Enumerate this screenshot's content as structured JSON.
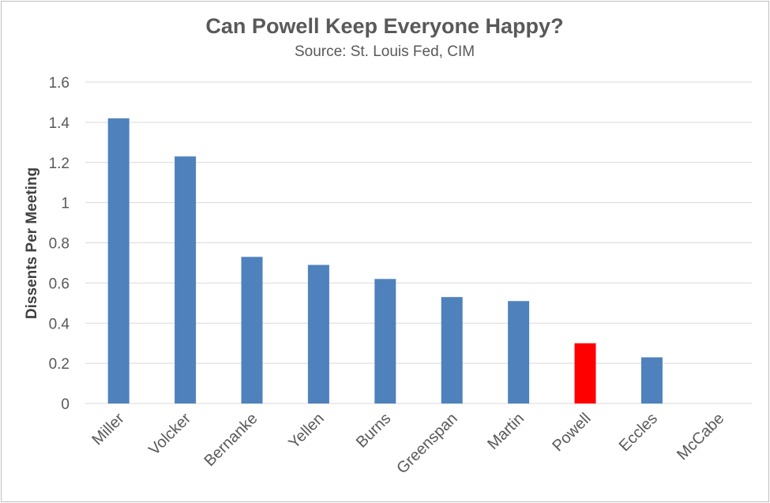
{
  "chart_data": {
    "type": "bar",
    "title": "Can Powell Keep Everyone Happy?",
    "subtitle": "Source: St. Louis Fed, CIM",
    "xlabel": "",
    "ylabel": "Dissents Per Meeting",
    "ylim": [
      0,
      1.6
    ],
    "yticks": [
      0,
      0.2,
      0.4,
      0.6,
      0.8,
      1,
      1.2,
      1.4,
      1.6
    ],
    "ytick_labels": [
      "0",
      "0.2",
      "0.4",
      "0.6",
      "0.8",
      "1",
      "1.2",
      "1.4",
      "1.6"
    ],
    "categories": [
      "Miller",
      "Volcker",
      "Bernanke",
      "Yellen",
      "Burns",
      "Greenspan",
      "Martin",
      "Powell",
      "Eccles",
      "McCabe"
    ],
    "values": [
      1.42,
      1.23,
      0.73,
      0.69,
      0.62,
      0.53,
      0.51,
      0.3,
      0.23,
      0
    ],
    "colors": [
      "#4f81bd",
      "#4f81bd",
      "#4f81bd",
      "#4f81bd",
      "#4f81bd",
      "#4f81bd",
      "#4f81bd",
      "#ff0000",
      "#4f81bd",
      "#4f81bd"
    ],
    "grid": true,
    "legend": "none"
  }
}
